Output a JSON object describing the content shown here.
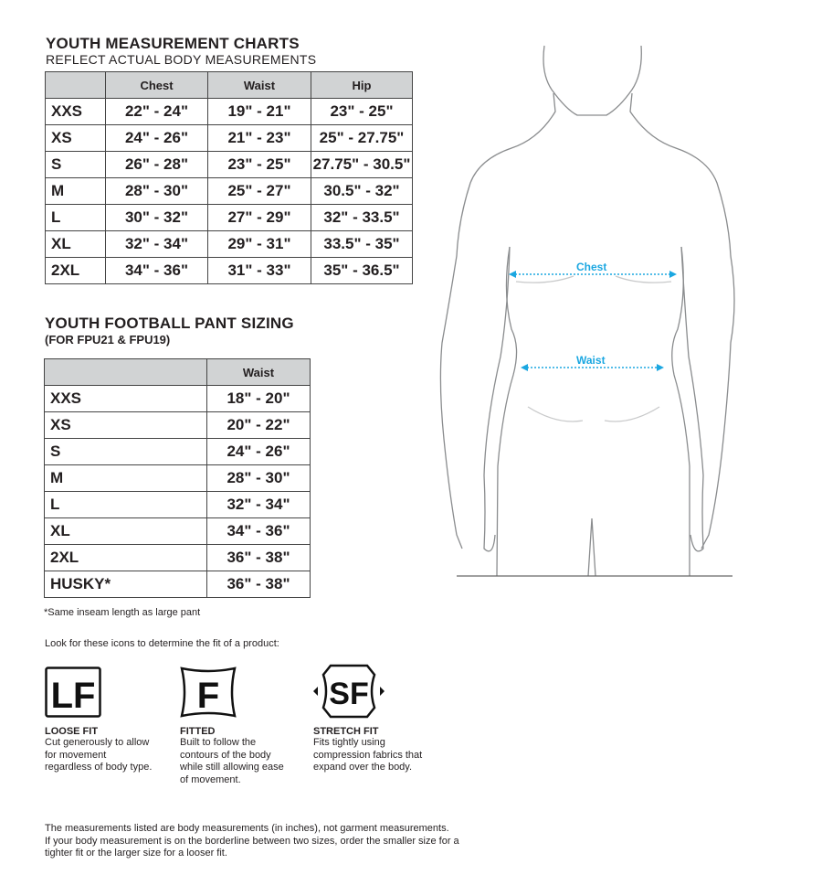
{
  "measurement": {
    "title": "YOUTH MEASUREMENT CHARTS",
    "subtitle": "REFLECT ACTUAL BODY MEASUREMENTS",
    "headers": [
      "",
      "Chest",
      "Waist",
      "Hip"
    ],
    "rows": [
      [
        "XXS",
        "22\" - 24\"",
        "19\" - 21\"",
        "23\" - 25\""
      ],
      [
        "XS",
        "24\" - 26\"",
        "21\" - 23\"",
        "25\" - 27.75\""
      ],
      [
        "S",
        "26\" - 28\"",
        "23\" - 25\"",
        "27.75\" - 30.5\""
      ],
      [
        "M",
        "28\" - 30\"",
        "25\" - 27\"",
        "30.5\" - 32\""
      ],
      [
        "L",
        "30\" - 32\"",
        "27\" - 29\"",
        "32\" - 33.5\""
      ],
      [
        "XL",
        "32\" - 34\"",
        "29\" - 31\"",
        "33.5\" - 35\""
      ],
      [
        "2XL",
        "34\" - 36\"",
        "31\" - 33\"",
        "35\" - 36.5\""
      ]
    ]
  },
  "pants": {
    "title": "YOUTH FOOTBALL PANT SIZING",
    "subtitle": "(FOR FPU21 & FPU19)",
    "headers": [
      "",
      "Waist"
    ],
    "rows": [
      [
        "XXS",
        "18\" - 20\""
      ],
      [
        "XS",
        "20\" - 22\""
      ],
      [
        "S",
        "24\" - 26\""
      ],
      [
        "M",
        "28\" - 30\""
      ],
      [
        "L",
        "32\" - 34\""
      ],
      [
        "XL",
        "34\" - 36\""
      ],
      [
        "2XL",
        "36\" - 38\""
      ],
      [
        "HUSKY*",
        "36\" - 38\""
      ]
    ],
    "note": "*Same inseam length as large pant"
  },
  "fit_intro": "Look for these icons to determine the fit of a product:",
  "fits": [
    {
      "icon": "LF",
      "label": "LOOSE FIT",
      "desc": "Cut generously to allow for movement regardless of body type."
    },
    {
      "icon": "F",
      "label": "FITTED",
      "desc": "Built to follow the contours of the body while still allowing ease of movement."
    },
    {
      "icon": "SF",
      "label": "STRETCH FIT",
      "desc": "Fits tightly using compression fabrics that expand over the body."
    }
  ],
  "footer": [
    "The measurements listed are body measurements (in inches), not garment measurements.",
    "If your body measurement is on the borderline between two sizes, order the smaller size for a",
    "tighter fit or the larger size for a looser fit."
  ],
  "figure": {
    "chest_label": "Chest",
    "waist_label": "Waist",
    "accent": "#1ba7e1"
  }
}
